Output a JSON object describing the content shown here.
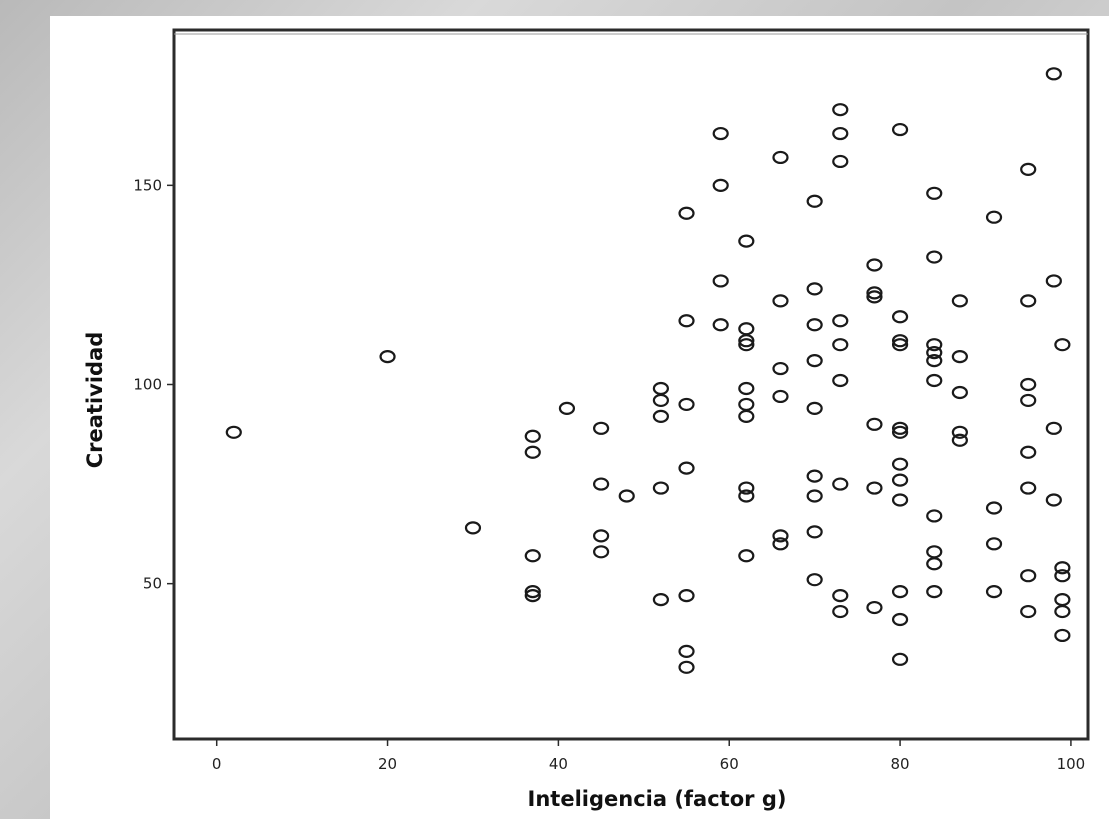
{
  "chart_data": {
    "type": "scatter",
    "title": "",
    "xlabel": "Inteligencia (factor g)",
    "ylabel": "Creatividad",
    "xlim": [
      -5,
      102
    ],
    "ylim": [
      11,
      189
    ],
    "x_ticks": [
      "0",
      "20",
      "40",
      "60",
      "80",
      "100"
    ],
    "y_ticks": [
      "50",
      "100",
      "150"
    ],
    "grid": false,
    "legend": "none",
    "marker": "open-circle",
    "colors": {
      "marker": "#1a1a1a",
      "frame": "#2b2b2b",
      "background": "#ffffff"
    },
    "points": [
      {
        "x": 2,
        "y": 88
      },
      {
        "x": 20,
        "y": 107
      },
      {
        "x": 30,
        "y": 64
      },
      {
        "x": 37,
        "y": 87
      },
      {
        "x": 37,
        "y": 83
      },
      {
        "x": 37,
        "y": 57
      },
      {
        "x": 37,
        "y": 48
      },
      {
        "x": 37,
        "y": 47
      },
      {
        "x": 41,
        "y": 94
      },
      {
        "x": 45,
        "y": 89
      },
      {
        "x": 45,
        "y": 75
      },
      {
        "x": 45,
        "y": 62
      },
      {
        "x": 45,
        "y": 58
      },
      {
        "x": 48,
        "y": 72
      },
      {
        "x": 52,
        "y": 99
      },
      {
        "x": 52,
        "y": 96
      },
      {
        "x": 52,
        "y": 92
      },
      {
        "x": 52,
        "y": 74
      },
      {
        "x": 52,
        "y": 46
      },
      {
        "x": 55,
        "y": 143
      },
      {
        "x": 55,
        "y": 116
      },
      {
        "x": 55,
        "y": 95
      },
      {
        "x": 55,
        "y": 79
      },
      {
        "x": 55,
        "y": 47
      },
      {
        "x": 55,
        "y": 33
      },
      {
        "x": 55,
        "y": 29
      },
      {
        "x": 59,
        "y": 163
      },
      {
        "x": 59,
        "y": 150
      },
      {
        "x": 59,
        "y": 126
      },
      {
        "x": 59,
        "y": 115
      },
      {
        "x": 62,
        "y": 136
      },
      {
        "x": 62,
        "y": 114
      },
      {
        "x": 62,
        "y": 111
      },
      {
        "x": 62,
        "y": 110
      },
      {
        "x": 62,
        "y": 99
      },
      {
        "x": 62,
        "y": 95
      },
      {
        "x": 62,
        "y": 92
      },
      {
        "x": 62,
        "y": 74
      },
      {
        "x": 62,
        "y": 72
      },
      {
        "x": 62,
        "y": 57
      },
      {
        "x": 66,
        "y": 157
      },
      {
        "x": 66,
        "y": 121
      },
      {
        "x": 66,
        "y": 104
      },
      {
        "x": 66,
        "y": 97
      },
      {
        "x": 66,
        "y": 62
      },
      {
        "x": 66,
        "y": 60
      },
      {
        "x": 70,
        "y": 146
      },
      {
        "x": 70,
        "y": 124
      },
      {
        "x": 70,
        "y": 115
      },
      {
        "x": 70,
        "y": 106
      },
      {
        "x": 70,
        "y": 94
      },
      {
        "x": 70,
        "y": 77
      },
      {
        "x": 70,
        "y": 72
      },
      {
        "x": 70,
        "y": 63
      },
      {
        "x": 70,
        "y": 51
      },
      {
        "x": 73,
        "y": 169
      },
      {
        "x": 73,
        "y": 163
      },
      {
        "x": 73,
        "y": 156
      },
      {
        "x": 73,
        "y": 116
      },
      {
        "x": 73,
        "y": 110
      },
      {
        "x": 73,
        "y": 101
      },
      {
        "x": 73,
        "y": 75
      },
      {
        "x": 73,
        "y": 47
      },
      {
        "x": 73,
        "y": 43
      },
      {
        "x": 77,
        "y": 130
      },
      {
        "x": 77,
        "y": 123
      },
      {
        "x": 77,
        "y": 122
      },
      {
        "x": 77,
        "y": 90
      },
      {
        "x": 77,
        "y": 74
      },
      {
        "x": 77,
        "y": 44
      },
      {
        "x": 80,
        "y": 164
      },
      {
        "x": 80,
        "y": 117
      },
      {
        "x": 80,
        "y": 111
      },
      {
        "x": 80,
        "y": 110
      },
      {
        "x": 80,
        "y": 89
      },
      {
        "x": 80,
        "y": 88
      },
      {
        "x": 80,
        "y": 80
      },
      {
        "x": 80,
        "y": 76
      },
      {
        "x": 80,
        "y": 71
      },
      {
        "x": 80,
        "y": 48
      },
      {
        "x": 80,
        "y": 41
      },
      {
        "x": 80,
        "y": 31
      },
      {
        "x": 84,
        "y": 148
      },
      {
        "x": 84,
        "y": 132
      },
      {
        "x": 84,
        "y": 110
      },
      {
        "x": 84,
        "y": 108
      },
      {
        "x": 84,
        "y": 106
      },
      {
        "x": 84,
        "y": 101
      },
      {
        "x": 84,
        "y": 67
      },
      {
        "x": 84,
        "y": 58
      },
      {
        "x": 84,
        "y": 55
      },
      {
        "x": 84,
        "y": 48
      },
      {
        "x": 87,
        "y": 121
      },
      {
        "x": 87,
        "y": 107
      },
      {
        "x": 87,
        "y": 98
      },
      {
        "x": 87,
        "y": 88
      },
      {
        "x": 87,
        "y": 86
      },
      {
        "x": 91,
        "y": 142
      },
      {
        "x": 91,
        "y": 69
      },
      {
        "x": 91,
        "y": 60
      },
      {
        "x": 91,
        "y": 48
      },
      {
        "x": 95,
        "y": 154
      },
      {
        "x": 95,
        "y": 121
      },
      {
        "x": 95,
        "y": 100
      },
      {
        "x": 95,
        "y": 96
      },
      {
        "x": 95,
        "y": 83
      },
      {
        "x": 95,
        "y": 74
      },
      {
        "x": 95,
        "y": 52
      },
      {
        "x": 95,
        "y": 43
      },
      {
        "x": 98,
        "y": 178
      },
      {
        "x": 98,
        "y": 126
      },
      {
        "x": 98,
        "y": 89
      },
      {
        "x": 98,
        "y": 71
      },
      {
        "x": 99,
        "y": 110
      },
      {
        "x": 99,
        "y": 54
      },
      {
        "x": 99,
        "y": 52
      },
      {
        "x": 99,
        "y": 46
      },
      {
        "x": 99,
        "y": 43
      },
      {
        "x": 99,
        "y": 37
      }
    ]
  }
}
